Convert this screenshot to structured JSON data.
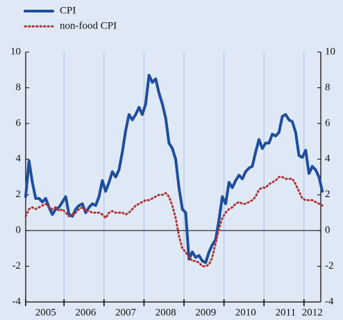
{
  "chart_data": {
    "type": "line",
    "categories": [
      null,
      null,
      null,
      null,
      null,
      null,
      "2005",
      null,
      null,
      null,
      null,
      null,
      null,
      null,
      null,
      null,
      null,
      null,
      "2006",
      null,
      null,
      null,
      null,
      null,
      null,
      null,
      null,
      null,
      null,
      null,
      "2007",
      null,
      null,
      null,
      null,
      null,
      null,
      null,
      null,
      null,
      null,
      null,
      "2008",
      null,
      null,
      null,
      null,
      null,
      null,
      null,
      null,
      null,
      null,
      null,
      "2009",
      null,
      null,
      null,
      null,
      null,
      null,
      null,
      null,
      null,
      null,
      null,
      "2010",
      null,
      null,
      null,
      null,
      null,
      null,
      null,
      null,
      null,
      null,
      null,
      "2011",
      null,
      null,
      null,
      null,
      null,
      null,
      null,
      "2012",
      null,
      null,
      null
    ],
    "series": [
      {
        "name": "CPI",
        "color": "#1f4e9c",
        "style": "solid",
        "values": [
          1.9,
          3.9,
          2.7,
          1.8,
          1.8,
          1.6,
          1.8,
          1.3,
          0.9,
          1.2,
          1.3,
          1.6,
          1.9,
          0.9,
          0.8,
          1.2,
          1.4,
          1.5,
          1.0,
          1.3,
          1.5,
          1.4,
          1.9,
          2.8,
          2.2,
          2.7,
          3.3,
          3.0,
          3.4,
          4.4,
          5.6,
          6.5,
          6.2,
          6.5,
          6.9,
          6.5,
          7.1,
          8.7,
          8.3,
          8.5,
          7.7,
          7.1,
          6.3,
          4.9,
          4.6,
          4.0,
          2.4,
          1.2,
          1.0,
          -1.6,
          -1.2,
          -1.5,
          -1.4,
          -1.7,
          -1.8,
          -1.2,
          -0.8,
          -0.5,
          0.6,
          1.9,
          1.5,
          2.7,
          2.4,
          2.8,
          3.1,
          2.9,
          3.3,
          3.5,
          3.6,
          4.4,
          5.1,
          4.6,
          4.9,
          4.9,
          5.4,
          5.3,
          5.5,
          6.4,
          6.5,
          6.2,
          6.1,
          5.5,
          4.2,
          4.1,
          4.5,
          3.2,
          3.6,
          3.4,
          3.0,
          2.2
        ]
      },
      {
        "name": "non-food CPI",
        "color": "#b03535",
        "style": "dotted",
        "values": [
          0.8,
          1.2,
          1.3,
          1.2,
          1.3,
          1.4,
          1.5,
          1.3,
          1.2,
          1.3,
          1.1,
          1.2,
          1.0,
          0.8,
          0.9,
          1.0,
          1.2,
          1.3,
          1.1,
          1.1,
          1.0,
          1.0,
          1.0,
          0.9,
          0.7,
          1.0,
          1.1,
          1.0,
          1.0,
          1.0,
          0.9,
          1.0,
          1.2,
          1.4,
          1.5,
          1.6,
          1.7,
          1.7,
          1.8,
          1.9,
          2.0,
          2.0,
          2.1,
          1.9,
          1.4,
          0.7,
          -0.3,
          -1.0,
          -1.2,
          -1.5,
          -1.7,
          -1.7,
          -1.8,
          -2.0,
          -2.0,
          -1.9,
          -1.5,
          -0.7,
          0.1,
          0.7,
          1.0,
          1.2,
          1.3,
          1.5,
          1.6,
          1.5,
          1.5,
          1.6,
          1.7,
          1.9,
          2.3,
          2.4,
          2.4,
          2.6,
          2.7,
          2.8,
          3.0,
          3.0,
          2.9,
          2.9,
          2.9,
          2.6,
          2.2,
          1.8,
          1.7,
          1.7,
          1.7,
          1.6,
          1.5,
          1.4
        ]
      }
    ],
    "ylim": [
      -4,
      10
    ],
    "yticks": [
      -4,
      -2,
      0,
      2,
      4,
      6,
      8,
      10
    ],
    "y2lim": [
      -4,
      10
    ],
    "y2ticks": [
      -4,
      -2,
      0,
      2,
      4,
      6,
      8,
      10
    ],
    "legend": "top-left",
    "grid": true
  }
}
